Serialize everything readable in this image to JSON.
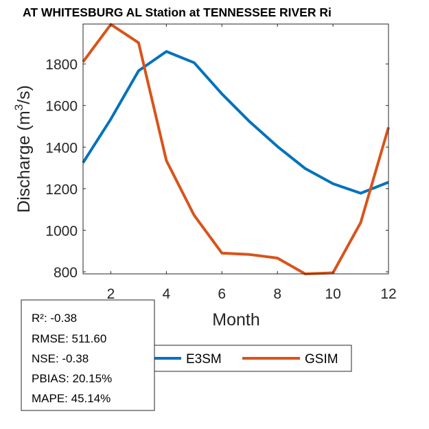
{
  "chart_data": {
    "type": "line",
    "title": "AT WHITESBURG AL  Station at  TENNESSEE RIVER  Ri",
    "xlabel": "Month",
    "ylabel_main": "Discharge (m",
    "ylabel_sup": "3",
    "ylabel_tail": "/s)",
    "xlim": [
      1,
      12
    ],
    "ylim": [
      790,
      1992
    ],
    "xticks": [
      2,
      4,
      6,
      8,
      10,
      12
    ],
    "yticks": [
      800,
      1000,
      1200,
      1400,
      1600,
      1800
    ],
    "x": [
      1,
      2,
      3,
      4,
      5,
      6,
      7,
      8,
      9,
      10,
      11,
      12
    ],
    "series": [
      {
        "name": "E3SM",
        "color": "#0072BD",
        "values": [
          1325,
          1535,
          1767,
          1860,
          1806,
          1656,
          1522,
          1403,
          1297,
          1224,
          1178,
          1231
        ]
      },
      {
        "name": "GSIM",
        "color": "#D95319",
        "values": [
          1810,
          1990,
          1902,
          1335,
          1072,
          890,
          883,
          866,
          790,
          795,
          1037,
          1495
        ]
      }
    ],
    "legend_position": "bottom-center",
    "grid": false,
    "stats": [
      "R²: -0.38",
      "RMSE: 511.60",
      "NSE: -0.38",
      "PBIAS: 20.15%",
      "MAPE: 45.14%"
    ]
  }
}
